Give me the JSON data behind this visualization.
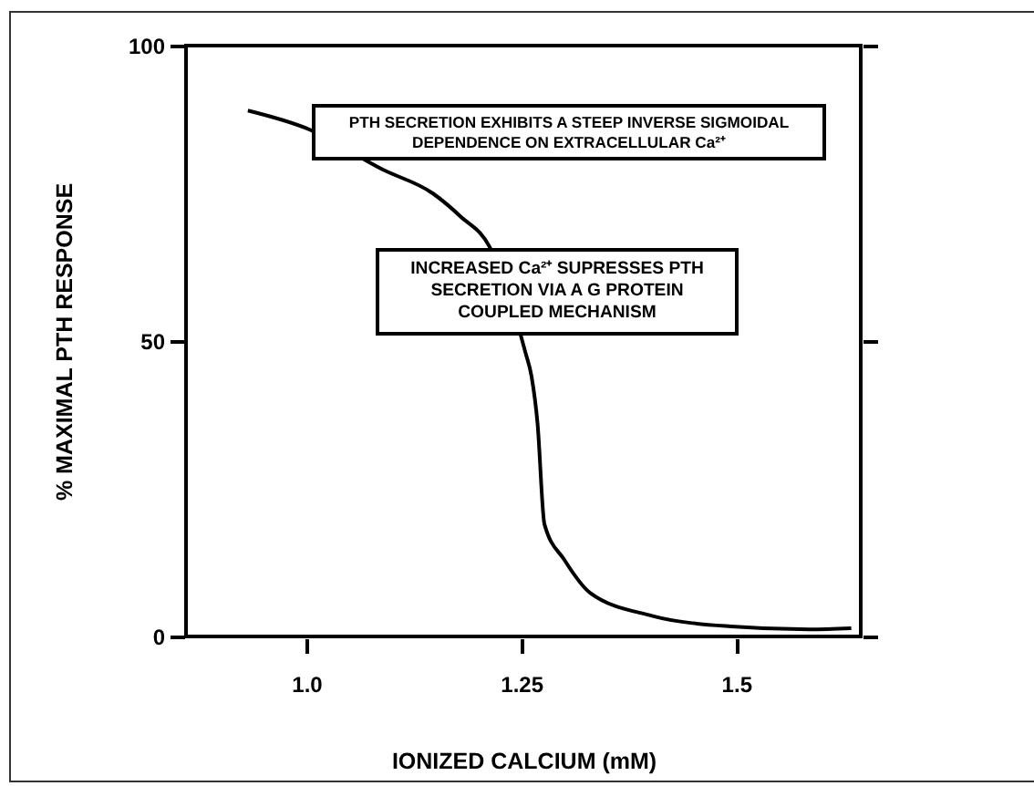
{
  "chart_data": {
    "type": "line",
    "xlabel": "IONIZED CALCIUM (mM)",
    "ylabel": "%  MAXIMAL PTH RESPONSE",
    "annotations": [
      "PTH SECRETION EXHIBITS A STEEP INVERSE SIGMOIDAL DEPENDENCE ON EXTRACELLULAR Ca²⁺",
      "INCREASED Ca²⁺ SUPRESSES PTH SECRETION VIA A G PROTEIN COUPLED MECHANISM"
    ],
    "series": [
      {
        "color": "#000000",
        "x": [
          0.932,
          1.0,
          1.089,
          1.147,
          1.18,
          1.213,
          1.255,
          1.262,
          1.269,
          1.277,
          1.3,
          1.33,
          1.402,
          1.494,
          1.585,
          1.634
        ],
        "values": [
          89,
          86,
          79,
          75,
          71,
          66,
          48,
          44,
          36,
          19,
          13,
          7.4,
          3.5,
          1.7,
          1.2,
          1.4
        ]
      }
    ],
    "xlim": [
      0.86,
      1.645
    ],
    "ylim": [
      0,
      100
    ],
    "xticks": [
      {
        "value": 1.0,
        "label": "1.0"
      },
      1.25,
      1.5
    ],
    "yticks": [
      0,
      50,
      100
    ],
    "grid": false,
    "legend": false,
    "marker": "none",
    "line_style": "solid"
  }
}
